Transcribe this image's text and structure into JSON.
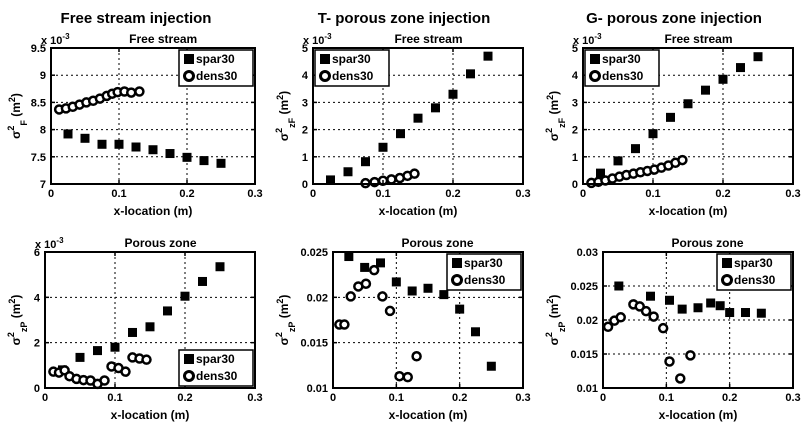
{
  "headers": [
    {
      "label": "Free stream injection"
    },
    {
      "label": "T- porous zone injection"
    },
    {
      "label": "G- porous zone injection"
    }
  ],
  "legend_labels": [
    "spar30",
    "dens30"
  ],
  "colors": {
    "marker": "#000000",
    "background": "#ffffff",
    "text": "#000000"
  },
  "chart_data": [
    {
      "type": "scatter",
      "title": "Free stream",
      "xlabel": "x-location (m)",
      "ylabel": {
        "base": "σ",
        "sup": "2",
        "sub": "F",
        "unit_pre": " (m",
        "unit_sup": "2",
        "unit_post": ")"
      },
      "y_offset": {
        "text": "x 10",
        "sup": "-3"
      },
      "y_display_scale": "1e-3",
      "xlim": [
        0,
        0.3
      ],
      "ylim": [
        7,
        9.5
      ],
      "xticks": [
        0,
        0.1,
        0.2,
        0.3
      ],
      "yticks": [
        7,
        7.5,
        8,
        8.5,
        9,
        9.5
      ],
      "grid": true,
      "legend_pos": "tr",
      "margin_left": 44,
      "series": [
        {
          "name": "spar30",
          "marker": "square",
          "points": [
            [
              0.025,
              7.92
            ],
            [
              0.05,
              7.84
            ],
            [
              0.075,
              7.73
            ],
            [
              0.1,
              7.73
            ],
            [
              0.125,
              7.68
            ],
            [
              0.15,
              7.63
            ],
            [
              0.175,
              7.56
            ],
            [
              0.2,
              7.49
            ],
            [
              0.225,
              7.43
            ],
            [
              0.25,
              7.38
            ]
          ]
        },
        {
          "name": "dens30",
          "marker": "circle",
          "points": [
            [
              0.012,
              8.37
            ],
            [
              0.022,
              8.39
            ],
            [
              0.032,
              8.42
            ],
            [
              0.042,
              8.46
            ],
            [
              0.052,
              8.5
            ],
            [
              0.062,
              8.53
            ],
            [
              0.072,
              8.57
            ],
            [
              0.082,
              8.62
            ],
            [
              0.09,
              8.66
            ],
            [
              0.098,
              8.69
            ],
            [
              0.108,
              8.7
            ],
            [
              0.118,
              8.68
            ],
            [
              0.13,
              8.7
            ]
          ]
        }
      ]
    },
    {
      "type": "scatter",
      "title": "Free stream",
      "xlabel": "x-location (m)",
      "ylabel": {
        "base": "σ",
        "sup": "2",
        "sub": "zF",
        "unit_pre": " (m",
        "unit_sup": "2",
        "unit_post": ")"
      },
      "y_offset": {
        "text": "x 10",
        "sup": "-3"
      },
      "y_display_scale": "1e-3",
      "xlim": [
        0,
        0.3
      ],
      "ylim": [
        0,
        5
      ],
      "xticks": [
        0,
        0.1,
        0.2,
        0.3
      ],
      "yticks": [
        0,
        1,
        2,
        3,
        4,
        5
      ],
      "grid": true,
      "legend_pos": "tl",
      "margin_left": 38,
      "series": [
        {
          "name": "spar30",
          "marker": "square",
          "points": [
            [
              0.025,
              0.15
            ],
            [
              0.05,
              0.45
            ],
            [
              0.075,
              0.82
            ],
            [
              0.1,
              1.35
            ],
            [
              0.125,
              1.85
            ],
            [
              0.15,
              2.42
            ],
            [
              0.175,
              2.8
            ],
            [
              0.2,
              3.3
            ],
            [
              0.225,
              4.05
            ],
            [
              0.25,
              4.7
            ]
          ]
        },
        {
          "name": "dens30",
          "marker": "circle",
          "points": [
            [
              0.075,
              0.03
            ],
            [
              0.088,
              0.07
            ],
            [
              0.1,
              0.12
            ],
            [
              0.112,
              0.17
            ],
            [
              0.124,
              0.22
            ],
            [
              0.135,
              0.3
            ],
            [
              0.145,
              0.38
            ]
          ]
        }
      ]
    },
    {
      "type": "scatter",
      "title": "Free stream",
      "xlabel": "x-location (m)",
      "ylabel": {
        "base": "σ",
        "sup": "2",
        "sub": "zF",
        "unit_pre": " (m",
        "unit_sup": "2",
        "unit_post": ")"
      },
      "y_offset": {
        "text": "x 10",
        "sup": "-3"
      },
      "y_display_scale": "1e-3",
      "xlim": [
        0,
        0.3
      ],
      "ylim": [
        0,
        5
      ],
      "xticks": [
        0,
        0.1,
        0.2,
        0.3
      ],
      "yticks": [
        0,
        1,
        2,
        3,
        4,
        5
      ],
      "grid": true,
      "legend_pos": "tl",
      "margin_left": 38,
      "series": [
        {
          "name": "spar30",
          "marker": "square",
          "points": [
            [
              0.025,
              0.4
            ],
            [
              0.05,
              0.85
            ],
            [
              0.075,
              1.3
            ],
            [
              0.1,
              1.85
            ],
            [
              0.125,
              2.45
            ],
            [
              0.15,
              2.95
            ],
            [
              0.175,
              3.45
            ],
            [
              0.2,
              3.85
            ],
            [
              0.225,
              4.28
            ],
            [
              0.25,
              4.68
            ]
          ]
        },
        {
          "name": "dens30",
          "marker": "circle",
          "points": [
            [
              0.012,
              0.04
            ],
            [
              0.022,
              0.08
            ],
            [
              0.032,
              0.13
            ],
            [
              0.042,
              0.2
            ],
            [
              0.052,
              0.27
            ],
            [
              0.062,
              0.33
            ],
            [
              0.072,
              0.38
            ],
            [
              0.082,
              0.43
            ],
            [
              0.092,
              0.48
            ],
            [
              0.102,
              0.53
            ],
            [
              0.112,
              0.6
            ],
            [
              0.122,
              0.68
            ],
            [
              0.132,
              0.78
            ],
            [
              0.142,
              0.88
            ]
          ]
        }
      ]
    },
    {
      "type": "scatter",
      "title": "Porous zone",
      "xlabel": "x-location (m)",
      "ylabel": {
        "base": "σ",
        "sup": "2",
        "sub": "zP",
        "unit_pre": " (m",
        "unit_sup": "2",
        "unit_post": ")"
      },
      "y_offset": {
        "text": "x 10",
        "sup": "-3"
      },
      "y_display_scale": "1e-3",
      "xlim": [
        0,
        0.3
      ],
      "ylim": [
        0,
        6
      ],
      "xticks": [
        0,
        0.1,
        0.2,
        0.3
      ],
      "yticks": [
        0,
        2,
        4,
        6
      ],
      "grid": true,
      "legend_pos": "br",
      "margin_left": 38,
      "series": [
        {
          "name": "spar30",
          "marker": "square",
          "points": [
            [
              0.025,
              0.8
            ],
            [
              0.05,
              1.35
            ],
            [
              0.075,
              1.65
            ],
            [
              0.1,
              1.8
            ],
            [
              0.125,
              2.45
            ],
            [
              0.15,
              2.7
            ],
            [
              0.175,
              3.4
            ],
            [
              0.2,
              4.05
            ],
            [
              0.225,
              4.7
            ],
            [
              0.25,
              5.35
            ]
          ]
        },
        {
          "name": "dens30",
          "marker": "circle",
          "points": [
            [
              0.012,
              0.72
            ],
            [
              0.02,
              0.68
            ],
            [
              0.028,
              0.78
            ],
            [
              0.035,
              0.52
            ],
            [
              0.045,
              0.4
            ],
            [
              0.055,
              0.35
            ],
            [
              0.065,
              0.33
            ],
            [
              0.075,
              0.18
            ],
            [
              0.085,
              0.33
            ],
            [
              0.095,
              0.95
            ],
            [
              0.105,
              0.88
            ],
            [
              0.115,
              0.72
            ],
            [
              0.125,
              1.35
            ],
            [
              0.135,
              1.3
            ],
            [
              0.145,
              1.25
            ]
          ]
        }
      ]
    },
    {
      "type": "scatter",
      "title": "Porous zone",
      "xlabel": "x-location (m)",
      "ylabel": {
        "base": "σ",
        "sup": "2",
        "sub": "zP",
        "unit_pre": " (m",
        "unit_sup": "2",
        "unit_post": ")"
      },
      "y_offset": null,
      "y_display_scale": "1",
      "xlim": [
        0,
        0.3
      ],
      "ylim": [
        0.01,
        0.025
      ],
      "xticks": [
        0,
        0.1,
        0.2,
        0.3
      ],
      "yticks": [
        0.01,
        0.015,
        0.02,
        0.025
      ],
      "grid": true,
      "legend_pos": "tr",
      "margin_left": 58,
      "series": [
        {
          "name": "spar30",
          "marker": "square",
          "points": [
            [
              0.025,
              0.0245
            ],
            [
              0.05,
              0.0233
            ],
            [
              0.075,
              0.0238
            ],
            [
              0.1,
              0.0217
            ],
            [
              0.125,
              0.0207
            ],
            [
              0.15,
              0.021
            ],
            [
              0.175,
              0.0203
            ],
            [
              0.2,
              0.0187
            ],
            [
              0.225,
              0.0162
            ],
            [
              0.25,
              0.0124
            ]
          ]
        },
        {
          "name": "dens30",
          "marker": "circle",
          "points": [
            [
              0.01,
              0.017
            ],
            [
              0.018,
              0.017
            ],
            [
              0.028,
              0.0201
            ],
            [
              0.04,
              0.0212
            ],
            [
              0.052,
              0.0215
            ],
            [
              0.065,
              0.023
            ],
            [
              0.078,
              0.0201
            ],
            [
              0.09,
              0.0185
            ],
            [
              0.105,
              0.0113
            ],
            [
              0.118,
              0.0112
            ],
            [
              0.132,
              0.0135
            ]
          ]
        }
      ]
    },
    {
      "type": "scatter",
      "title": "Porous zone",
      "xlabel": "x-location (m)",
      "ylabel": {
        "base": "σ",
        "sup": "2",
        "sub": "zP",
        "unit_pre": " (m",
        "unit_sup": "2",
        "unit_post": ")"
      },
      "y_offset": null,
      "y_display_scale": "1",
      "xlim": [
        0,
        0.3
      ],
      "ylim": [
        0.01,
        0.03
      ],
      "xticks": [
        0,
        0.1,
        0.2,
        0.3
      ],
      "yticks": [
        0.01,
        0.015,
        0.02,
        0.025,
        0.03
      ],
      "grid": true,
      "legend_pos": "tr",
      "margin_left": 58,
      "series": [
        {
          "name": "spar30",
          "marker": "square",
          "points": [
            [
              0.025,
              0.025
            ],
            [
              0.075,
              0.0235
            ],
            [
              0.105,
              0.0229
            ],
            [
              0.125,
              0.0216
            ],
            [
              0.15,
              0.0218
            ],
            [
              0.17,
              0.0225
            ],
            [
              0.185,
              0.0221
            ],
            [
              0.2,
              0.0211
            ],
            [
              0.225,
              0.0211
            ],
            [
              0.25,
              0.021
            ]
          ]
        },
        {
          "name": "dens30",
          "marker": "circle",
          "points": [
            [
              0.008,
              0.019
            ],
            [
              0.018,
              0.0199
            ],
            [
              0.028,
              0.0204
            ],
            [
              0.048,
              0.0223
            ],
            [
              0.058,
              0.022
            ],
            [
              0.068,
              0.0213
            ],
            [
              0.08,
              0.0205
            ],
            [
              0.095,
              0.0188
            ],
            [
              0.105,
              0.0139
            ],
            [
              0.122,
              0.0114
            ],
            [
              0.138,
              0.0148
            ]
          ]
        }
      ]
    }
  ]
}
